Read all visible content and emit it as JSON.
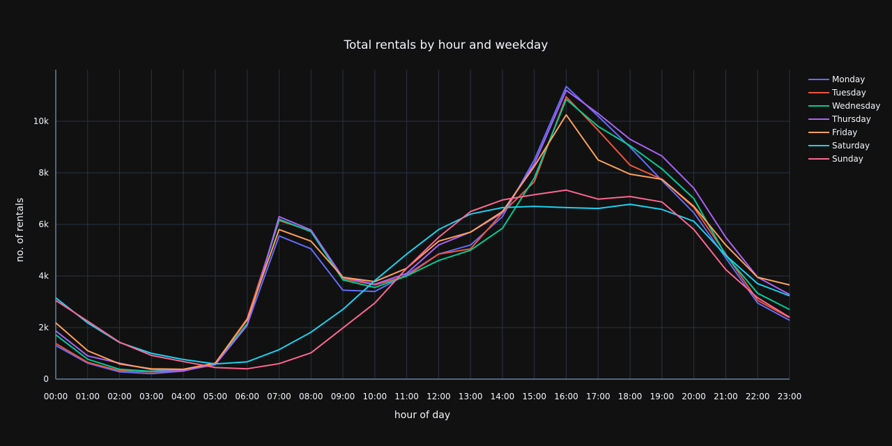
{
  "chart_data": {
    "type": "line",
    "title": "Total rentals by hour and weekday",
    "xlabel": "hour of day",
    "ylabel": "no. of rentals",
    "ylim": [
      0,
      12000
    ],
    "y_ticks": [
      0,
      2000,
      4000,
      6000,
      8000,
      10000
    ],
    "y_tick_labels": [
      "0",
      "2k",
      "4k",
      "6k",
      "8k",
      "10k"
    ],
    "grid": true,
    "legend_position": "top-right",
    "categories": [
      "00:00",
      "01:00",
      "02:00",
      "03:00",
      "04:00",
      "05:00",
      "06:00",
      "07:00",
      "08:00",
      "09:00",
      "10:00",
      "11:00",
      "12:00",
      "13:00",
      "14:00",
      "15:00",
      "16:00",
      "17:00",
      "18:00",
      "19:00",
      "20:00",
      "21:00",
      "22:00",
      "23:00"
    ],
    "series": [
      {
        "name": "Monday",
        "color": "#636efa",
        "values": [
          1300,
          620,
          280,
          210,
          310,
          600,
          2100,
          5550,
          5050,
          3450,
          3400,
          4050,
          4850,
          5200,
          6300,
          8500,
          11350,
          10200,
          9000,
          7700,
          6450,
          4700,
          2950,
          2280
        ]
      },
      {
        "name": "Tuesday",
        "color": "#EF553B",
        "values": [
          1380,
          650,
          330,
          280,
          320,
          620,
          2350,
          6150,
          5750,
          3900,
          3650,
          4000,
          4850,
          5050,
          6450,
          7650,
          10950,
          9650,
          8300,
          7750,
          6650,
          4850,
          3050,
          2380
        ]
      },
      {
        "name": "Wednesday",
        "color": "#00cc96",
        "values": [
          1720,
          770,
          380,
          300,
          350,
          600,
          2150,
          6200,
          5720,
          3850,
          3550,
          4000,
          4600,
          5000,
          5850,
          7800,
          10850,
          9800,
          9050,
          8150,
          7000,
          4800,
          3330,
          2700
        ]
      },
      {
        "name": "Thursday",
        "color": "#ab63fa",
        "values": [
          1870,
          900,
          620,
          370,
          330,
          560,
          2080,
          6300,
          5780,
          3950,
          3680,
          4100,
          5200,
          5700,
          6450,
          8350,
          11200,
          10300,
          9300,
          8650,
          7400,
          5500,
          3950,
          3280
        ]
      },
      {
        "name": "Friday",
        "color": "#FFA15A",
        "values": [
          2180,
          1100,
          590,
          400,
          380,
          620,
          2300,
          5800,
          5350,
          3950,
          3780,
          4300,
          5350,
          5700,
          6500,
          8250,
          10250,
          8500,
          7950,
          7750,
          6700,
          5200,
          3950,
          3650
        ]
      },
      {
        "name": "Saturday",
        "color": "#19d3f3",
        "values": [
          3150,
          2180,
          1420,
          1000,
          760,
          590,
          670,
          1140,
          1820,
          2700,
          3820,
          4850,
          5800,
          6400,
          6650,
          6700,
          6650,
          6620,
          6780,
          6580,
          6120,
          4800,
          3700,
          3230
        ]
      },
      {
        "name": "Sunday",
        "color": "#FF6692",
        "values": [
          3050,
          2250,
          1430,
          920,
          680,
          450,
          400,
          600,
          1020,
          1980,
          2950,
          4300,
          5500,
          6500,
          6950,
          7150,
          7330,
          6980,
          7080,
          6870,
          5800,
          4250,
          3150,
          2400
        ]
      }
    ]
  }
}
